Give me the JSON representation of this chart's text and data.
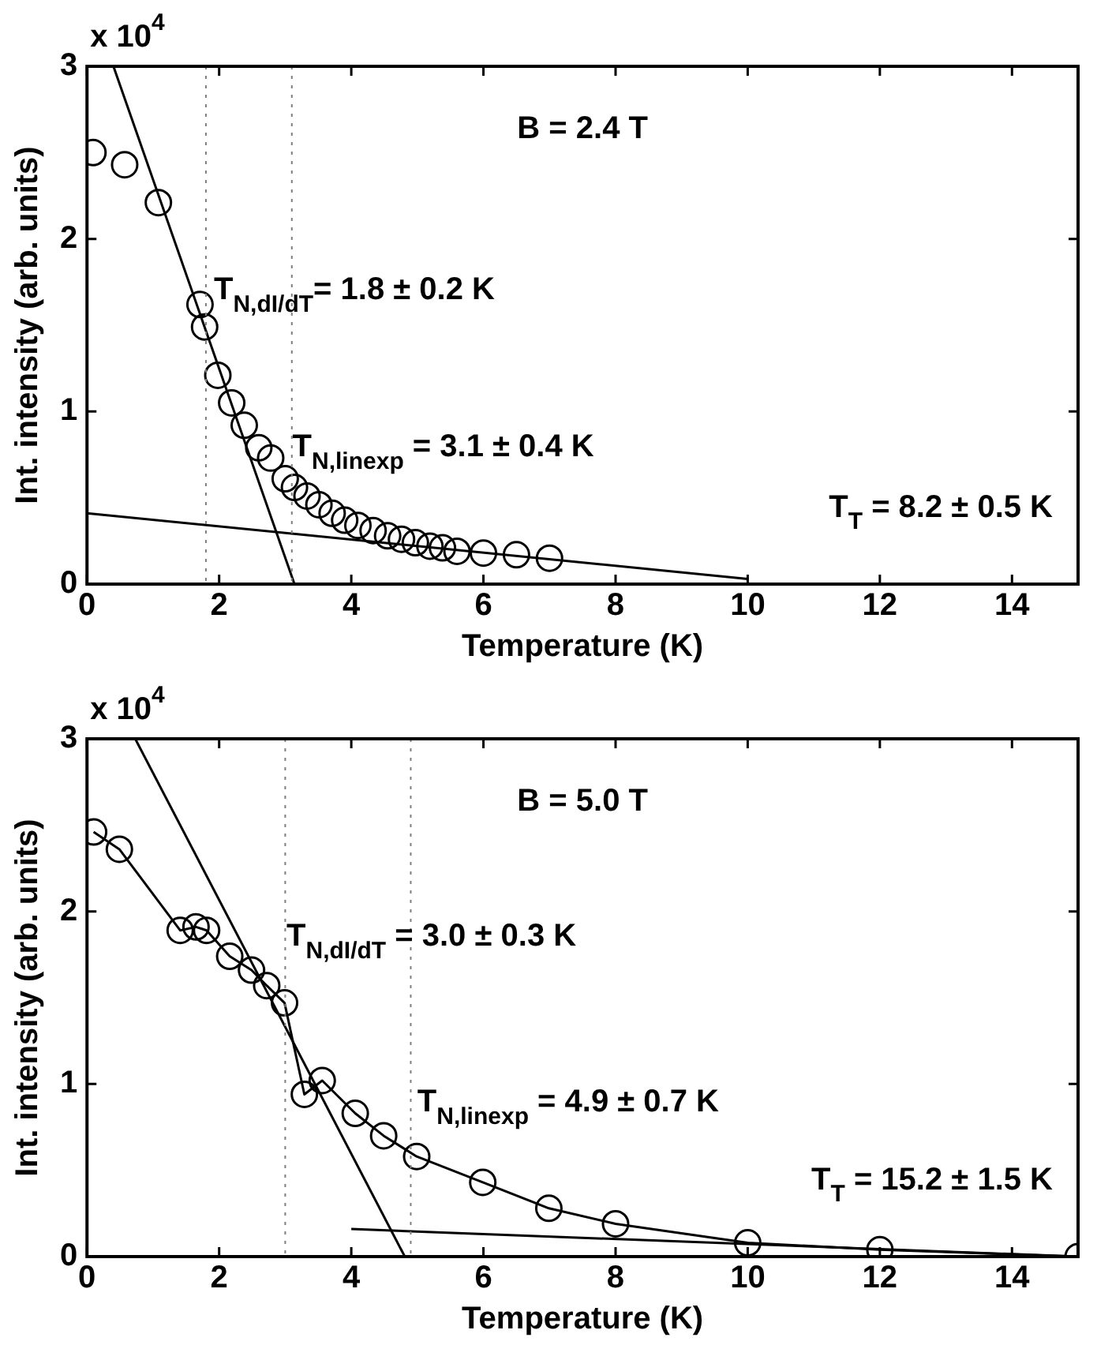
{
  "chart_data": [
    {
      "type": "scatter",
      "xlabel": "Temperature (K)",
      "ylabel": "Int. intensity (arb. units)",
      "xlim": [
        0,
        15
      ],
      "xticks": [
        0,
        2,
        4,
        6,
        8,
        10,
        12,
        14
      ],
      "ylim": [
        0,
        3
      ],
      "yticks": [
        0,
        1,
        2,
        3
      ],
      "marker": "circle",
      "grid": false,
      "legend": false,
      "series": [
        {
          "color": "#000000",
          "x": [
            0.09,
            0.57,
            1.08,
            1.71,
            1.78,
            1.98,
            2.19,
            2.38,
            2.6,
            2.78,
            3.0,
            3.14,
            3.33,
            3.51,
            3.71,
            3.9,
            4.1,
            4.33,
            4.55,
            4.76,
            4.97,
            5.19,
            5.38,
            5.6,
            6.0,
            6.5,
            7.0
          ],
          "values": [
            2.5,
            2.43,
            2.21,
            1.62,
            1.49,
            1.21,
            1.05,
            0.92,
            0.79,
            0.73,
            0.61,
            0.56,
            0.51,
            0.46,
            0.41,
            0.37,
            0.34,
            0.31,
            0.28,
            0.26,
            0.24,
            0.22,
            0.21,
            0.19,
            0.18,
            0.17,
            0.15
          ]
        },
        {
          "type": "line",
          "marker": "none",
          "color": "#000000",
          "x": [
            0.4,
            3.14
          ],
          "values": [
            3,
            0
          ]
        },
        {
          "type": "line",
          "marker": "none",
          "color": "#000000",
          "x": [
            0,
            10
          ],
          "values": [
            0.41,
            0.03
          ]
        }
      ],
      "ref_lines": [
        {
          "axis": "x",
          "value": 1.8,
          "color": "#808080",
          "line_style": "dotted"
        },
        {
          "axis": "x",
          "value": 3.1,
          "color": "#808080",
          "line_style": "dotted"
        }
      ],
      "annotations": [
        "x 10$^{4}$",
        "B = 2.4 T",
        {
          "text": "T$_{N,dI/dT}$= 1.8 ± 0.2 K",
          "x": 1.92,
          "y": 1.7
        },
        {
          "text": "T$_{N,linexp}$ = 3.1 ± 0.4 K",
          "x": 3.11,
          "y": 0.79
        },
        "T$_{T}$ = 8.2 ± 0.5 K"
      ]
    },
    {
      "type": "line",
      "xlabel": "Temperature (K)",
      "ylabel": "Int. intensity (arb. units)",
      "xlim": [
        0,
        15
      ],
      "xticks": [
        0,
        2,
        4,
        6,
        8,
        10,
        12,
        14
      ],
      "ylim": [
        0,
        3
      ],
      "yticks": [
        0,
        1,
        2,
        3
      ],
      "marker": "circle",
      "grid": false,
      "legend": false,
      "series": [
        {
          "color": "#000000",
          "x": [
            0.1,
            0.49,
            1.41,
            1.65,
            1.81,
            2.16,
            2.49,
            2.72,
            2.99,
            3.29,
            3.56,
            4.06,
            4.49,
            4.99,
            5.99,
            6.99,
            8.0,
            10,
            12,
            15
          ],
          "values": [
            2.46,
            2.36,
            1.89,
            1.91,
            1.89,
            1.74,
            1.66,
            1.57,
            1.47,
            0.94,
            1.02,
            0.83,
            0.7,
            0.58,
            0.43,
            0.28,
            0.19,
            0.08,
            0.04,
            0
          ]
        },
        {
          "marker": "none",
          "color": "#000000",
          "x": [
            0.73,
            4.81
          ],
          "values": [
            3,
            0
          ]
        },
        {
          "marker": "none",
          "color": "#000000",
          "x": [
            4.0,
            15
          ],
          "values": [
            0.16,
            0
          ]
        }
      ],
      "ref_lines": [
        {
          "axis": "x",
          "value": 3.0,
          "color": "#808080",
          "line_style": "dotted"
        },
        {
          "axis": "x",
          "value": 4.9,
          "color": "#808080",
          "line_style": "dotted"
        }
      ],
      "annotations": [
        "x 10$^{4}$",
        "B = 5.0 T",
        {
          "text": "T$_{N,dI/dT}$ = 3.0 ± 0.3 K",
          "x": 3.02,
          "y": 1.85
        },
        {
          "text": "T$_{N,linexp}$ = 4.9 ± 0.7 K",
          "x": 5.0,
          "y": 0.89
        },
        "T$_{T}$ = 15.2 ± 1.5 K"
      ]
    }
  ]
}
